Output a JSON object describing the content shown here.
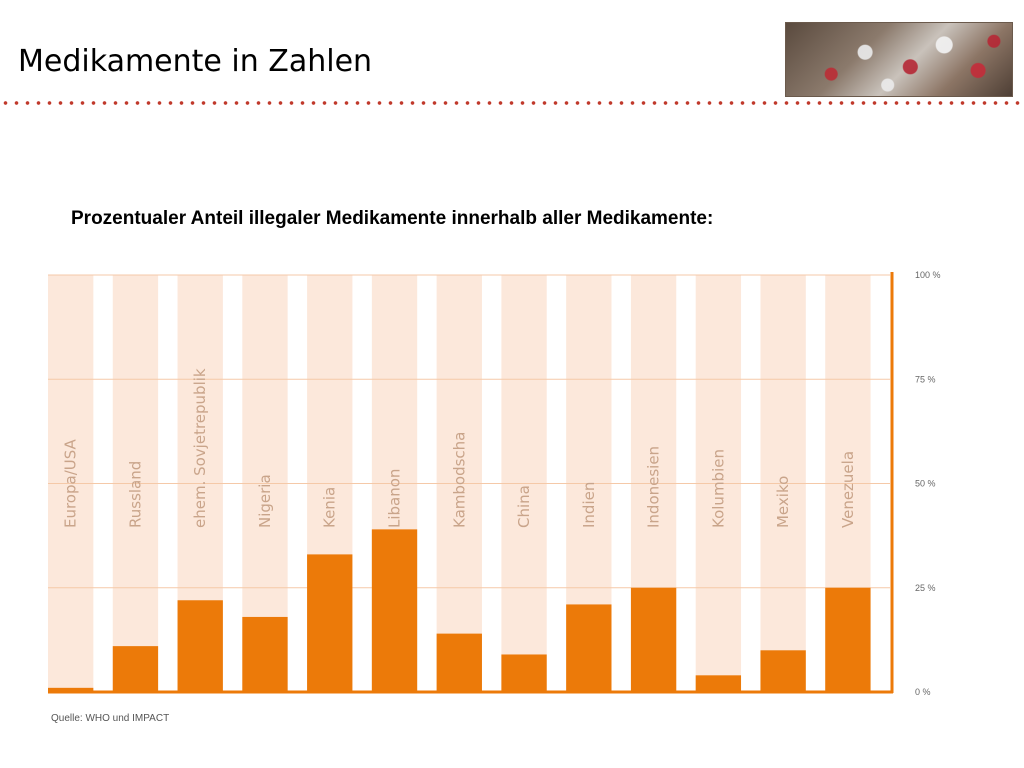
{
  "slide": {
    "title": "Medikamente in Zahlen"
  },
  "chart_heading": "Prozentualer Anteil illegaler Medikamente innerhalb aller Medikamente:",
  "source_note": "Quelle: WHO und IMPACT",
  "colors": {
    "bar": "#ec7a09",
    "band": "#fce8db",
    "axis": "#ec7a09",
    "gridline": "#f5c9a8",
    "label": "#c9a48a",
    "tick_label": "#666666",
    "dotted_rule": "#c0392b"
  },
  "chart_data": {
    "type": "bar",
    "categories": [
      "Europa/USA",
      "Russland",
      "ehem. Sovjetrepublik",
      "Nigeria",
      "Kenia",
      "Libanon",
      "Kambodscha",
      "China",
      "Indien",
      "Indonesien",
      "Kolumbien",
      "Mexiko",
      "Venezuela"
    ],
    "values": [
      1,
      11,
      22,
      18,
      33,
      39,
      14,
      9,
      21,
      25,
      4,
      10,
      25
    ],
    "title": "Prozentualer Anteil illegaler Medikamente innerhalb aller Medikamente:",
    "xlabel": "",
    "ylabel": "",
    "ylim": [
      0,
      100
    ],
    "yticks": [
      0,
      25,
      50,
      75,
      100
    ],
    "ytick_labels": [
      "0 %",
      "25 %",
      "50 %",
      "75 %",
      "100 %"
    ],
    "y_axis_side": "right",
    "grid": true,
    "legend": "none"
  }
}
